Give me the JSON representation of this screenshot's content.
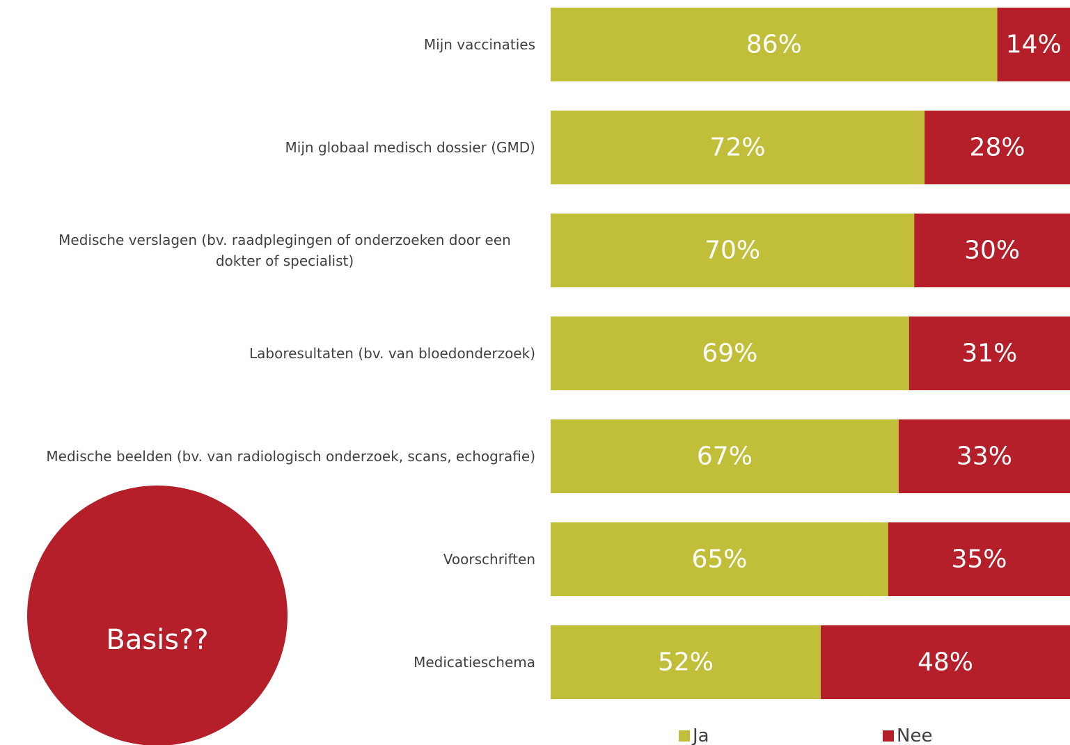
{
  "chart_data": {
    "type": "stacked-bar-horizontal",
    "categories": [
      "Mijn vaccinaties",
      "Mijn globaal medisch dossier (GMD)",
      "Medische verslagen (bv. raadplegingen of onderzoeken door een dokter of specialist)",
      "Laboresultaten (bv. van bloedonderzoek)",
      "Medische beelden (bv. van radiologisch onderzoek, scans, echografie)",
      "Voorschriften",
      "Medicatieschema"
    ],
    "series": [
      {
        "name": "Ja",
        "color": "#c1bf3a",
        "values": [
          86,
          72,
          70,
          69,
          67,
          65,
          52
        ],
        "value_labels": [
          "86%",
          "72%",
          "70%",
          "69%",
          "67%",
          "65%",
          "52%"
        ]
      },
      {
        "name": "Nee",
        "color": "#b41f2a",
        "values": [
          14,
          28,
          30,
          31,
          33,
          35,
          48
        ],
        "value_labels": [
          "14%",
          "28%",
          "30%",
          "31%",
          "33%",
          "35%",
          "48%"
        ]
      }
    ],
    "xlim": [
      0,
      100
    ],
    "annotation": "Basis??"
  }
}
